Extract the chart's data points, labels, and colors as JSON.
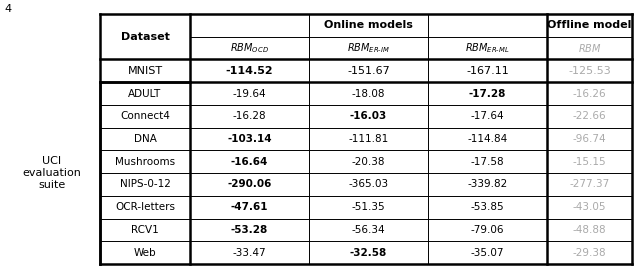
{
  "fig_label": "4",
  "col_headers": [
    {
      "tex": "$\\mathit{RBM}_{OCD}$",
      "offline": false
    },
    {
      "tex": "$\\mathit{RBM}_{ER\\text{-}IM}$",
      "offline": false
    },
    {
      "tex": "$\\mathit{RBM}_{ER\\text{-}ML}$",
      "offline": false
    },
    {
      "tex": "$\\mathit{RBM}$",
      "offline": true
    }
  ],
  "mnist_row": {
    "dataset": "MNIST",
    "values": [
      "-114.52",
      "-151.67",
      "-167.11",
      "-125.53"
    ],
    "bold": [
      true,
      false,
      false,
      false
    ]
  },
  "uci_label": "UCI\nevaluation\nsuite",
  "uci_rows": [
    {
      "dataset": "ADULT",
      "values": [
        "-19.64",
        "-18.08",
        "-17.28",
        "-16.26"
      ],
      "bold": [
        false,
        false,
        true,
        false
      ]
    },
    {
      "dataset": "Connect4",
      "values": [
        "-16.28",
        "-16.03",
        "-17.64",
        "-22.66"
      ],
      "bold": [
        false,
        true,
        false,
        false
      ]
    },
    {
      "dataset": "DNA",
      "values": [
        "-103.14",
        "-111.81",
        "-114.84",
        "-96.74"
      ],
      "bold": [
        true,
        false,
        false,
        false
      ]
    },
    {
      "dataset": "Mushrooms",
      "values": [
        "-16.64",
        "-20.38",
        "-17.58",
        "-15.15"
      ],
      "bold": [
        true,
        false,
        false,
        false
      ]
    },
    {
      "dataset": "NIPS-0-12",
      "values": [
        "-290.06",
        "-365.03",
        "-339.82",
        "-277.37"
      ],
      "bold": [
        true,
        false,
        false,
        false
      ]
    },
    {
      "dataset": "OCR-letters",
      "values": [
        "-47.61",
        "-51.35",
        "-53.85",
        "-43.05"
      ],
      "bold": [
        true,
        false,
        false,
        false
      ]
    },
    {
      "dataset": "RCV1",
      "values": [
        "-53.28",
        "-56.34",
        "-79.06",
        "-48.88"
      ],
      "bold": [
        true,
        false,
        false,
        false
      ]
    },
    {
      "dataset": "Web",
      "values": [
        "-33.47",
        "-32.58",
        "-35.07",
        "-29.38"
      ],
      "bold": [
        false,
        true,
        false,
        false
      ]
    }
  ],
  "offline_col_color": "#aaaaaa",
  "border_color": "#000000",
  "bg_color": "#ffffff",
  "lw_thick": 1.8,
  "lw_thin": 0.7,
  "fontsize_header": 8,
  "fontsize_data": 7.5,
  "fontsize_subheader": 7.0
}
